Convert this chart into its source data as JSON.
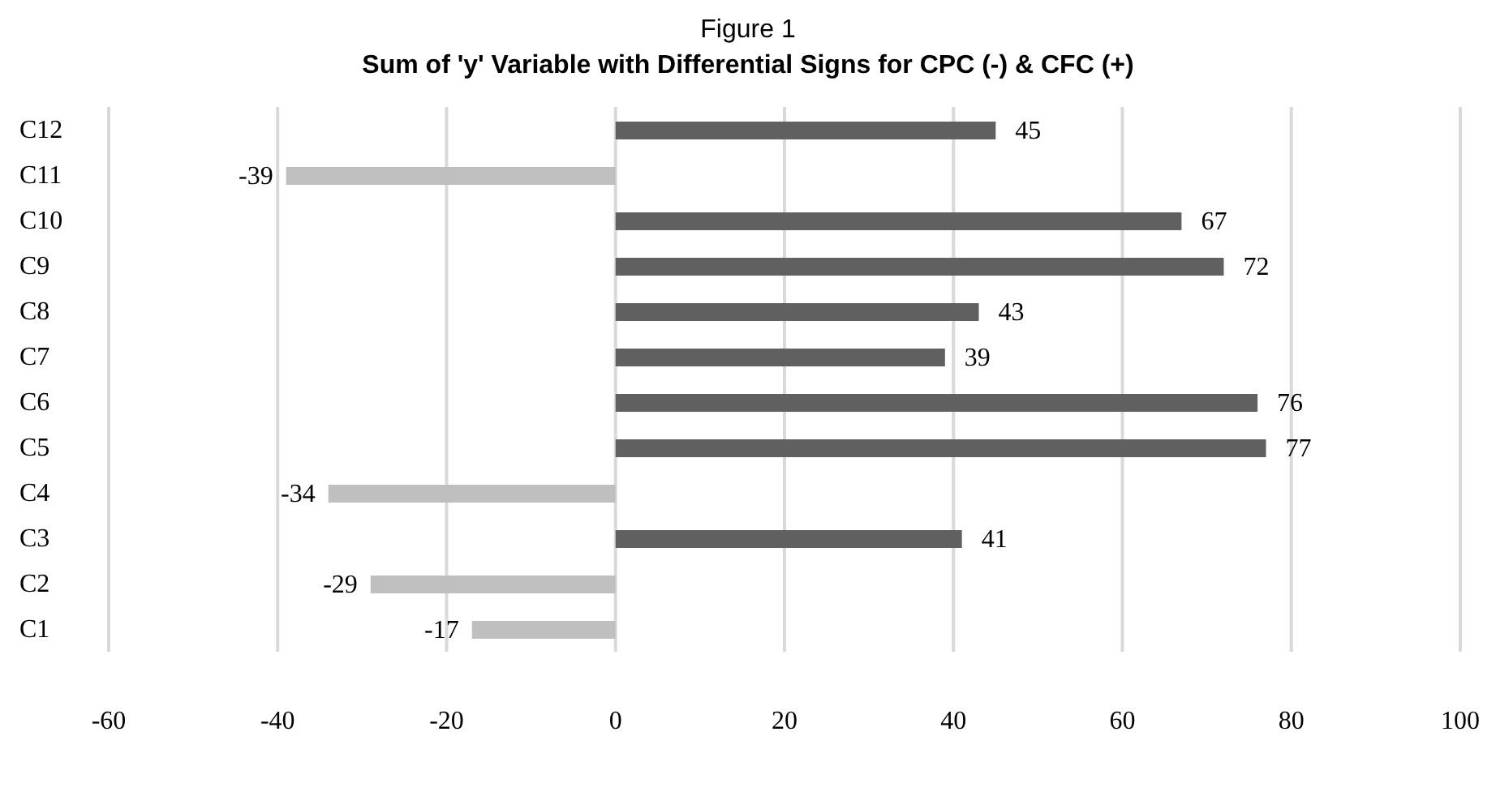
{
  "chart_data": {
    "type": "bar",
    "orientation": "horizontal",
    "title": "Figure 1",
    "subtitle": "Sum of 'y' Variable with Differential Signs for CPC (-) & CFC (+)",
    "categories": [
      "C12",
      "C11",
      "C10",
      "C9",
      "C8",
      "C7",
      "C6",
      "C5",
      "C4",
      "C3",
      "C2",
      "C1"
    ],
    "values": [
      45,
      -39,
      67,
      72,
      43,
      39,
      76,
      77,
      -34,
      41,
      -29,
      -17
    ],
    "colors": [
      "#606060",
      "#bfbfbf",
      "#606060",
      "#606060",
      "#606060",
      "#606060",
      "#606060",
      "#606060",
      "#bfbfbf",
      "#606060",
      "#bfbfbf",
      "#bfbfbf"
    ],
    "xlim": [
      -60,
      100
    ],
    "xticks": [
      -60,
      -40,
      -20,
      0,
      20,
      40,
      60,
      80,
      100
    ],
    "grid": "x",
    "data_labels": true
  }
}
